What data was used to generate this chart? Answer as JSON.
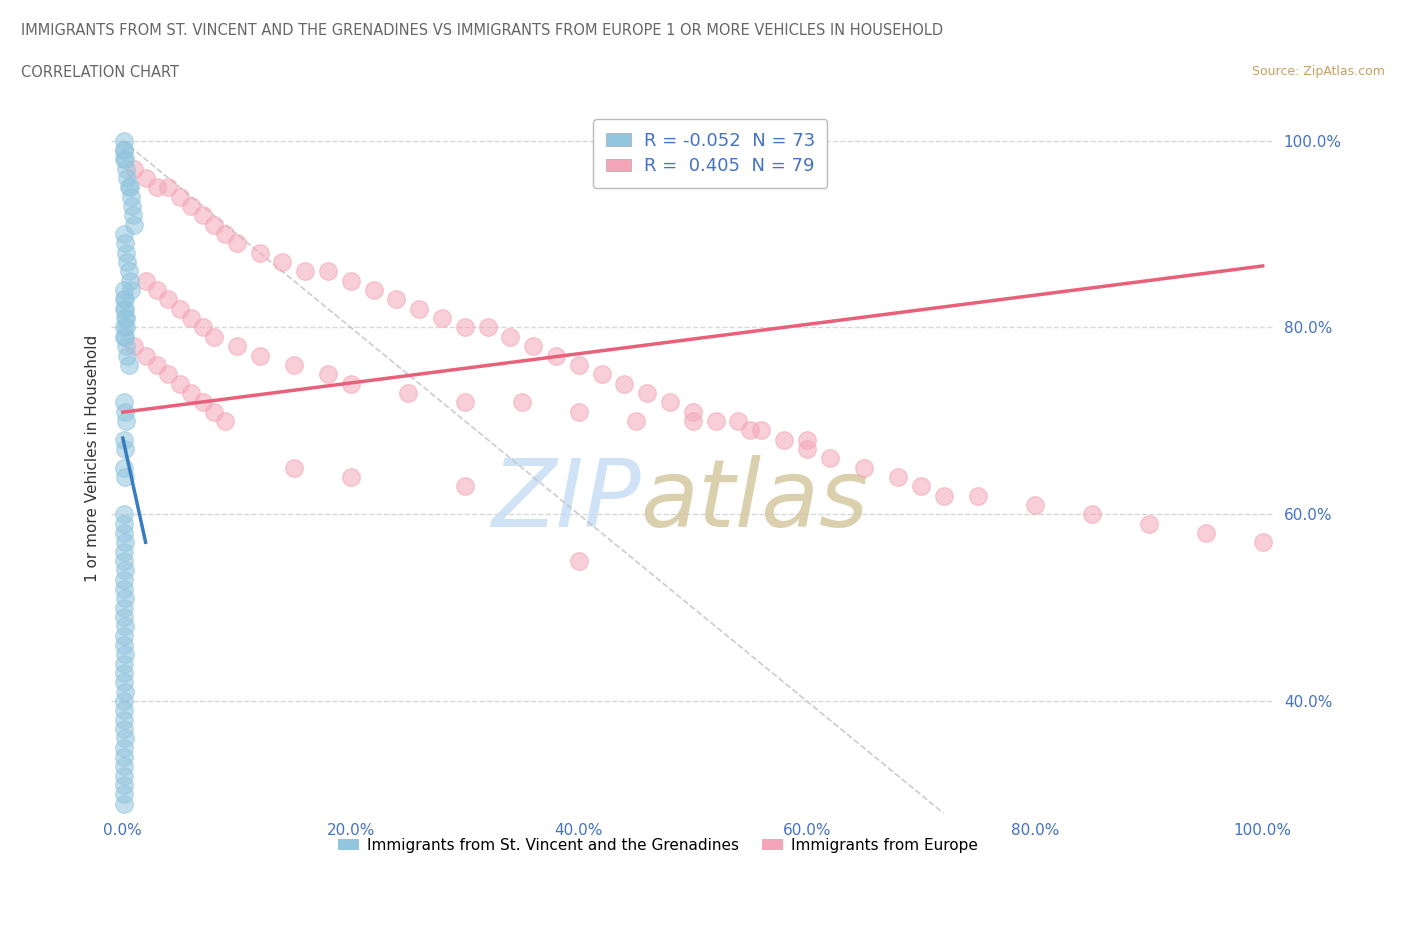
{
  "title_line1": "IMMIGRANTS FROM ST. VINCENT AND THE GRENADINES VS IMMIGRANTS FROM EUROPE 1 OR MORE VEHICLES IN HOUSEHOLD",
  "title_line2": "CORRELATION CHART",
  "source_text": "Source: ZipAtlas.com",
  "ylabel": "1 or more Vehicles in Household",
  "legend_blue_label": "Immigrants from St. Vincent and the Grenadines",
  "legend_pink_label": "Immigrants from Europe",
  "R_blue": -0.052,
  "N_blue": 73,
  "R_pink": 0.405,
  "N_pink": 79,
  "blue_color": "#92c5de",
  "pink_color": "#f4a6b8",
  "blue_line_color": "#3a7dbf",
  "pink_line_color": "#e8607a",
  "tick_color": "#4472c4",
  "watermark_zip_color": "#c8dff5",
  "watermark_atlas_color": "#d4c8a0",
  "source_color": "#c8a060",
  "title_color": "#666666",
  "grid_color": "#d8d8d8",
  "diag_color": "#c0c0c0",
  "xmin": 0,
  "xmax": 100,
  "ymin": 28,
  "ymax": 104,
  "yticks": [
    40,
    60,
    80,
    100
  ],
  "ytick_labels": [
    "40.0%",
    "60.0%",
    "80.0%",
    "100.0%"
  ],
  "xticks": [
    0,
    20,
    40,
    60,
    80,
    100
  ],
  "xtick_labels": [
    "0.0%",
    "20.0%",
    "40.0%",
    "60.0%",
    "80.0%",
    "100.0%"
  ],
  "blue_x": [
    0.1,
    0.2,
    0.3,
    0.4,
    0.5,
    0.6,
    0.7,
    0.8,
    0.9,
    1.0,
    0.1,
    0.2,
    0.3,
    0.4,
    0.5,
    0.6,
    0.7,
    0.1,
    0.2,
    0.3,
    0.1,
    0.2,
    0.3,
    0.4,
    0.5,
    0.1,
    0.2,
    0.1,
    0.2,
    0.3,
    0.1,
    0.1,
    0.2,
    0.3,
    0.1,
    0.2,
    0.1,
    0.2,
    0.1,
    0.1,
    0.1,
    0.2,
    0.1,
    0.1,
    0.2,
    0.1,
    0.1,
    0.2,
    0.1,
    0.1,
    0.2,
    0.1,
    0.1,
    0.2,
    0.1,
    0.1,
    0.1,
    0.2,
    0.1,
    0.1,
    0.1,
    0.1,
    0.2,
    0.1,
    0.1,
    0.1,
    0.1,
    0.1,
    0.1,
    0.1,
    0.1,
    0.1,
    0.1
  ],
  "blue_y": [
    99,
    98,
    97,
    96,
    95,
    95,
    94,
    93,
    92,
    91,
    90,
    89,
    88,
    87,
    86,
    85,
    84,
    83,
    82,
    81,
    80,
    79,
    78,
    77,
    76,
    84,
    83,
    82,
    81,
    80,
    79,
    72,
    71,
    70,
    68,
    67,
    65,
    64,
    60,
    59,
    58,
    57,
    56,
    55,
    54,
    53,
    52,
    51,
    50,
    49,
    48,
    47,
    46,
    45,
    44,
    43,
    42,
    41,
    40,
    39,
    38,
    37,
    36,
    35,
    34,
    33,
    32,
    31,
    30,
    29,
    100,
    99,
    98
  ],
  "pink_x": [
    1,
    2,
    3,
    4,
    5,
    6,
    7,
    8,
    9,
    10,
    12,
    14,
    16,
    18,
    20,
    22,
    24,
    26,
    28,
    30,
    32,
    34,
    36,
    38,
    40,
    42,
    44,
    46,
    48,
    50,
    52,
    54,
    56,
    58,
    60,
    62,
    65,
    68,
    70,
    72,
    75,
    80,
    85,
    90,
    95,
    100,
    2,
    3,
    4,
    5,
    6,
    7,
    8,
    10,
    12,
    15,
    18,
    20,
    25,
    30,
    35,
    40,
    45,
    50,
    55,
    60,
    1,
    2,
    3,
    4,
    5,
    6,
    7,
    8,
    9,
    15,
    20,
    30,
    40
  ],
  "pink_y": [
    97,
    96,
    95,
    95,
    94,
    93,
    92,
    91,
    90,
    89,
    88,
    87,
    86,
    86,
    85,
    84,
    83,
    82,
    81,
    80,
    80,
    79,
    78,
    77,
    76,
    75,
    74,
    73,
    72,
    71,
    70,
    70,
    69,
    68,
    67,
    66,
    65,
    64,
    63,
    62,
    62,
    61,
    60,
    59,
    58,
    57,
    85,
    84,
    83,
    82,
    81,
    80,
    79,
    78,
    77,
    76,
    75,
    74,
    73,
    72,
    72,
    71,
    70,
    70,
    69,
    68,
    78,
    77,
    76,
    75,
    74,
    73,
    72,
    71,
    70,
    65,
    64,
    63,
    55
  ]
}
